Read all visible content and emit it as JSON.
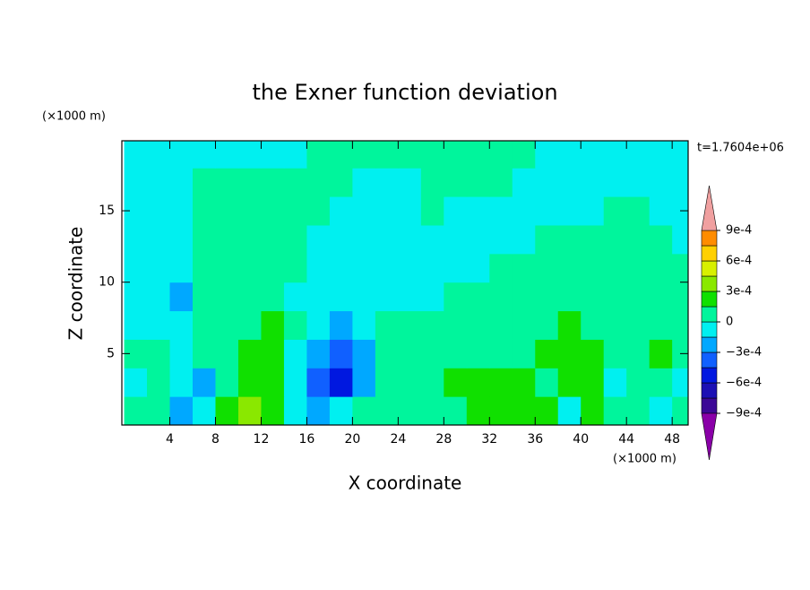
{
  "chart_data": {
    "type": "contour",
    "title": "the Exner function deviation",
    "x_label": "X coordinate",
    "y_label": "Z coordinate",
    "x_unit": "(×1000 m)",
    "y_unit": "(×1000 m)",
    "annotation": "t=1.7604e+06",
    "xlim": [
      -0.2,
      49.4
    ],
    "ylim": [
      0,
      19.9
    ],
    "xticks": [
      4,
      8,
      12,
      16,
      20,
      24,
      28,
      32,
      36,
      40,
      44,
      48
    ],
    "yticks": [
      5,
      10,
      15
    ],
    "x": [
      1,
      3,
      5,
      7,
      9,
      11,
      13,
      15,
      17,
      19,
      21,
      23,
      25,
      27,
      29,
      31,
      33,
      35,
      37,
      39,
      41,
      43,
      45,
      47,
      49
    ],
    "y": [
      1,
      3,
      5,
      7,
      9,
      11,
      13,
      15,
      17,
      19
    ],
    "z": [
      [
        7e-05,
        7e-05,
        -0.0002,
        -5e-05,
        0.0002,
        0.00035,
        0.0002,
        -5e-05,
        -0.0002,
        -5e-05,
        7e-05,
        7e-05,
        7e-05,
        7e-05,
        7e-05,
        0.0002,
        0.0002,
        0.0002,
        0.0002,
        -5e-05,
        0.0002,
        7e-05,
        7e-05,
        -5e-05,
        7e-05
      ],
      [
        -5e-05,
        7e-05,
        -5e-05,
        -0.0002,
        7e-05,
        0.0002,
        0.0002,
        -5e-05,
        -0.00035,
        -0.0005,
        -0.0002,
        7e-05,
        7e-05,
        7e-05,
        0.0002,
        0.0002,
        0.0002,
        0.0002,
        7e-05,
        0.0002,
        0.0002,
        -5e-05,
        7e-05,
        7e-05,
        -5e-05
      ],
      [
        7e-05,
        7e-05,
        -5e-05,
        7e-05,
        7e-05,
        0.0002,
        0.0002,
        -5e-05,
        -0.0002,
        -0.00035,
        -0.0002,
        7e-05,
        7e-05,
        7e-05,
        7e-05,
        7e-05,
        7e-05,
        7e-05,
        0.0002,
        0.0002,
        0.0002,
        7e-05,
        7e-05,
        0.0002,
        7e-05
      ],
      [
        -5e-05,
        -5e-05,
        -5e-05,
        7e-05,
        7e-05,
        7e-05,
        0.0002,
        7e-05,
        -5e-05,
        -0.0002,
        -5e-05,
        7e-05,
        7e-05,
        7e-05,
        7e-05,
        7e-05,
        7e-05,
        7e-05,
        7e-05,
        0.0002,
        7e-05,
        7e-05,
        7e-05,
        7e-05,
        7e-05
      ],
      [
        -5e-05,
        -5e-05,
        -0.0002,
        7e-05,
        7e-05,
        7e-05,
        7e-05,
        -5e-05,
        -5e-05,
        -5e-05,
        -5e-05,
        -5e-05,
        -5e-05,
        -5e-05,
        7e-05,
        7e-05,
        7e-05,
        7e-05,
        7e-05,
        7e-05,
        7e-05,
        7e-05,
        7e-05,
        7e-05,
        7e-05
      ],
      [
        -5e-05,
        -5e-05,
        -5e-05,
        7e-05,
        7e-05,
        7e-05,
        7e-05,
        7e-05,
        -5e-05,
        -5e-05,
        -5e-05,
        -5e-05,
        -5e-05,
        -5e-05,
        -5e-05,
        -5e-05,
        7e-05,
        7e-05,
        7e-05,
        7e-05,
        7e-05,
        7e-05,
        7e-05,
        7e-05,
        7e-05
      ],
      [
        -5e-05,
        -5e-05,
        -5e-05,
        7e-05,
        7e-05,
        7e-05,
        7e-05,
        7e-05,
        -5e-05,
        -5e-05,
        -5e-05,
        -5e-05,
        -5e-05,
        -5e-05,
        -5e-05,
        -5e-05,
        -5e-05,
        -5e-05,
        7e-05,
        7e-05,
        7e-05,
        7e-05,
        7e-05,
        7e-05,
        -5e-05
      ],
      [
        -5e-05,
        -5e-05,
        -5e-05,
        7e-05,
        7e-05,
        7e-05,
        7e-05,
        7e-05,
        7e-05,
        -5e-05,
        -5e-05,
        -5e-05,
        -5e-05,
        7e-05,
        -5e-05,
        -5e-05,
        -5e-05,
        -5e-05,
        -5e-05,
        -5e-05,
        -5e-05,
        7e-05,
        7e-05,
        -5e-05,
        -5e-05
      ],
      [
        -5e-05,
        -5e-05,
        -5e-05,
        7e-05,
        7e-05,
        7e-05,
        7e-05,
        7e-05,
        7e-05,
        7e-05,
        -5e-05,
        -5e-05,
        -5e-05,
        7e-05,
        7e-05,
        7e-05,
        7e-05,
        -5e-05,
        -5e-05,
        -5e-05,
        -5e-05,
        -5e-05,
        -5e-05,
        -5e-05,
        -5e-05
      ],
      [
        -5e-05,
        -5e-05,
        -5e-05,
        -5e-05,
        -5e-05,
        -5e-05,
        -5e-05,
        -5e-05,
        7e-05,
        7e-05,
        7e-05,
        7e-05,
        7e-05,
        7e-05,
        7e-05,
        7e-05,
        7e-05,
        7e-05,
        -5e-05,
        -5e-05,
        -5e-05,
        -5e-05,
        -5e-05,
        -5e-05,
        -5e-05
      ]
    ],
    "levels": [
      -0.0009,
      -0.00075,
      -0.0006,
      -0.00045,
      -0.0003,
      -0.00015,
      0,
      0.00015,
      0.0003,
      0.00045,
      0.0006,
      0.00075,
      0.0009
    ],
    "colors": [
      "#8a00a8",
      "#3c0896",
      "#1c10b4",
      "#0018e0",
      "#1060ff",
      "#00a8ff",
      "#00f0f0",
      "#00f59c",
      "#10e000",
      "#8ae800",
      "#d8f000",
      "#ffd000",
      "#ff8c00",
      "#ff4400",
      "#f0a0a0"
    ],
    "colorbar_ticks": [
      {
        "value": 0.0009,
        "label": "9e-4"
      },
      {
        "value": 0.0006,
        "label": "6e-4"
      },
      {
        "value": 0.0003,
        "label": "3e-4"
      },
      0,
      {
        "value": -0.0003,
        "label": "−3e-4"
      },
      {
        "value": -0.0006,
        "label": "−6e-4"
      },
      {
        "value": -0.0009,
        "label": "−9e-4"
      }
    ]
  }
}
